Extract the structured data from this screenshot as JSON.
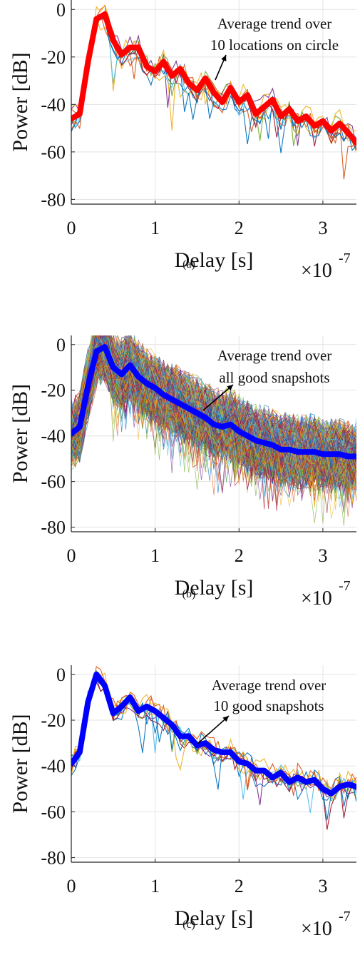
{
  "figure": {
    "xlabel": "Delay [s]",
    "ylabel": "Power [dB]",
    "x_scale_label": "×10",
    "x_scale_exponent": "-7",
    "x_ticks": [
      "0",
      "1",
      "2",
      "3"
    ],
    "y_ticks": [
      "0",
      "-20",
      "-40",
      "-60",
      "-80"
    ],
    "xlim": [
      0,
      3.4
    ],
    "ylim": [
      -82,
      4
    ],
    "grid": true
  },
  "chart_data": [
    {
      "type": "line",
      "caption": "(a)",
      "annotation_line1": "Average trend over",
      "annotation_line2": "10 locations on circle",
      "xlabel": "Delay [s]",
      "ylabel": "Power [dB]",
      "x_multiplier": "1e-7",
      "xlim": [
        0,
        3.4
      ],
      "ylim": [
        -82,
        4
      ],
      "individual_curve_count": 10,
      "average_color": "#ff0000",
      "x": [
        0,
        0.1,
        0.2,
        0.3,
        0.4,
        0.5,
        0.6,
        0.7,
        0.8,
        0.9,
        1.0,
        1.1,
        1.2,
        1.3,
        1.4,
        1.5,
        1.6,
        1.7,
        1.8,
        1.9,
        2.0,
        2.1,
        2.2,
        2.3,
        2.4,
        2.5,
        2.6,
        2.7,
        2.8,
        2.9,
        3.0,
        3.1,
        3.2,
        3.3,
        3.4
      ],
      "average": [
        -46,
        -44,
        -22,
        -4,
        -2,
        -13,
        -19,
        -16,
        -16,
        -24,
        -26,
        -22,
        -28,
        -25,
        -31,
        -34,
        -29,
        -35,
        -39,
        -33,
        -39,
        -36,
        -44,
        -41,
        -38,
        -45,
        -42,
        -47,
        -45,
        -49,
        -47,
        -51,
        -48,
        -52,
        -56
      ]
    },
    {
      "type": "line",
      "caption": "(b)",
      "annotation_line1": "Average trend over",
      "annotation_line2": "all good snapshots",
      "xlabel": "Delay [s]",
      "ylabel": "Power [dB]",
      "x_multiplier": "1e-7",
      "xlim": [
        0,
        3.4
      ],
      "ylim": [
        -82,
        4
      ],
      "individual_curve_count": 300,
      "average_color": "#0000ff",
      "x": [
        0,
        0.1,
        0.2,
        0.3,
        0.4,
        0.5,
        0.6,
        0.7,
        0.8,
        0.9,
        1.0,
        1.1,
        1.2,
        1.3,
        1.4,
        1.5,
        1.6,
        1.7,
        1.8,
        1.9,
        2.0,
        2.1,
        2.2,
        2.3,
        2.4,
        2.5,
        2.6,
        2.7,
        2.8,
        2.9,
        3.0,
        3.1,
        3.2,
        3.3,
        3.4
      ],
      "average": [
        -39,
        -36,
        -18,
        -3,
        -1,
        -10,
        -13,
        -9,
        -14,
        -17,
        -19,
        -22,
        -24,
        -26,
        -28,
        -30,
        -32,
        -35,
        -36,
        -35,
        -38,
        -40,
        -42,
        -43,
        -44,
        -46,
        -46,
        -47,
        -47,
        -47,
        -48,
        -48,
        -48,
        -49,
        -49
      ]
    },
    {
      "type": "line",
      "caption": "(c)",
      "annotation_line1": "Average trend over",
      "annotation_line2": "10 good snapshots",
      "xlabel": "Delay [s]",
      "ylabel": "Power [dB]",
      "x_multiplier": "1e-7",
      "xlim": [
        0,
        3.4
      ],
      "ylim": [
        -82,
        4
      ],
      "individual_curve_count": 10,
      "average_color": "#0000ff",
      "x": [
        0,
        0.1,
        0.2,
        0.3,
        0.4,
        0.5,
        0.6,
        0.7,
        0.8,
        0.9,
        1.0,
        1.1,
        1.2,
        1.3,
        1.4,
        1.5,
        1.6,
        1.7,
        1.8,
        1.9,
        2.0,
        2.1,
        2.2,
        2.3,
        2.4,
        2.5,
        2.6,
        2.7,
        2.8,
        2.9,
        3.0,
        3.1,
        3.2,
        3.3,
        3.4
      ],
      "average": [
        -39,
        -34,
        -12,
        0,
        -5,
        -17,
        -14,
        -10,
        -16,
        -14,
        -16,
        -19,
        -22,
        -27,
        -27,
        -31,
        -30,
        -33,
        -34,
        -34,
        -38,
        -39,
        -42,
        -42,
        -45,
        -43,
        -47,
        -45,
        -47,
        -46,
        -50,
        -52,
        -49,
        -48,
        -49
      ]
    }
  ]
}
